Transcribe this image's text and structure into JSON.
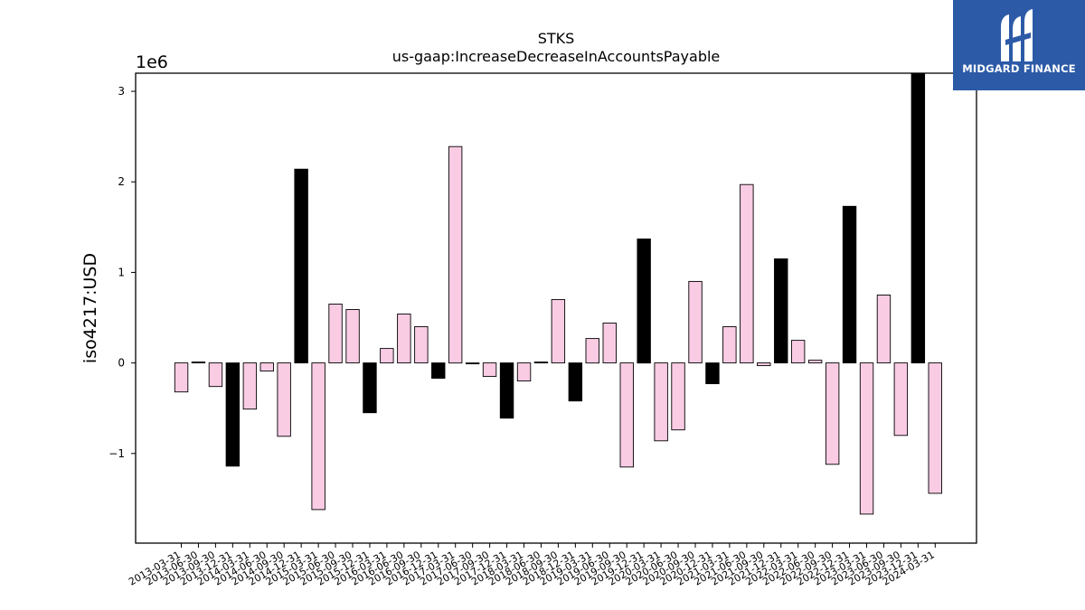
{
  "logo": {
    "name": "MIDGARD FINANCE",
    "icon": "midgard-mark-icon",
    "color": "#2c5aa7"
  },
  "chart_data": {
    "type": "bar",
    "title": "STKS",
    "subtitle": "us-gaap:IncreaseDecreaseInAccountsPayable",
    "ylabel": "iso4217:USD",
    "xlabel": "",
    "y_scale_label": "1e6",
    "y_multiplier": 1000000,
    "ylim": [
      -1.99,
      3.2
    ],
    "yticks": [
      -1,
      0,
      1,
      2,
      3
    ],
    "ytick_labels": [
      "−1",
      "0",
      "1",
      "2",
      "3"
    ],
    "grid": false,
    "colors": {
      "positive": "#000000",
      "negative": "#f9cce4",
      "edge": "#000000"
    },
    "categories": [
      "2013-03-31",
      "2013-06-30",
      "2013-09-30",
      "2013-12-31",
      "2014-03-31",
      "2014-06-30",
      "2014-09-30",
      "2014-12-31",
      "2015-03-31",
      "2015-06-30",
      "2015-09-30",
      "2015-12-31",
      "2016-03-31",
      "2016-06-30",
      "2016-09-30",
      "2016-12-31",
      "2017-03-31",
      "2017-06-30",
      "2017-09-30",
      "2017-12-31",
      "2018-03-31",
      "2018-06-30",
      "2018-09-30",
      "2018-12-31",
      "2019-03-31",
      "2019-06-30",
      "2019-09-30",
      "2019-12-31",
      "2020-03-31",
      "2020-06-30",
      "2020-09-30",
      "2020-12-31",
      "2021-03-31",
      "2021-06-30",
      "2021-09-30",
      "2021-12-31",
      "2022-03-31",
      "2022-06-30",
      "2022-09-30",
      "2022-12-31",
      "2023-03-31",
      "2023-06-30",
      "2023-09-30",
      "2023-12-31",
      "2024-03-31"
    ],
    "values": [
      -0.32,
      0.01,
      -0.26,
      -1.14,
      -0.51,
      -0.09,
      -0.81,
      2.14,
      -1.62,
      0.65,
      0.59,
      -0.55,
      0.16,
      0.54,
      0.4,
      -0.17,
      2.39,
      -0.01,
      -0.15,
      -0.61,
      -0.2,
      0.01,
      0.7,
      -0.42,
      0.27,
      0.44,
      -1.15,
      1.37,
      -0.86,
      -0.74,
      0.9,
      -0.23,
      0.4,
      1.97,
      -0.03,
      1.15,
      0.25,
      0.03,
      -1.12,
      1.73,
      -1.67,
      0.75,
      -0.8,
      3.2,
      -1.44
    ],
    "highlighted": [
      false,
      false,
      false,
      true,
      false,
      false,
      false,
      true,
      false,
      false,
      false,
      true,
      false,
      false,
      false,
      true,
      false,
      true,
      false,
      true,
      false,
      true,
      false,
      true,
      false,
      false,
      false,
      true,
      false,
      false,
      false,
      true,
      false,
      false,
      false,
      true,
      false,
      false,
      false,
      true,
      false,
      false,
      false,
      true,
      false
    ]
  }
}
